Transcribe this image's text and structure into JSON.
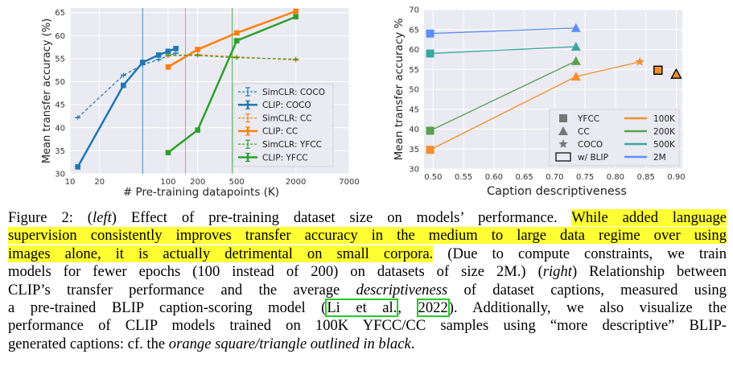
{
  "figure": {
    "left": {
      "ylabel": "Mean transfer accuracy (%)",
      "xlabel": "# Pre-training datapoints (K)",
      "xticks": [
        "10",
        "20",
        "100",
        "200",
        "500",
        "2000",
        "7000"
      ],
      "yticks": [
        "30",
        "35",
        "40",
        "45",
        "50",
        "55",
        "60",
        "65"
      ],
      "legend": [
        "SimCLR: COCO",
        "CLIP: COCO",
        "SimCLR: CC",
        "CLIP: CC",
        "SimCLR: YFCC",
        "CLIP: YFCC"
      ]
    },
    "right": {
      "ylabel": "Mean transfer accuracy %",
      "xlabel": "Caption descriptiveness",
      "xticks": [
        "0.50",
        "0.55",
        "0.60",
        "0.65",
        "0.70",
        "0.75",
        "0.80",
        "0.85",
        "0.90"
      ],
      "yticks": [
        "30",
        "35",
        "40",
        "45",
        "50",
        "55",
        "60",
        "65",
        "70"
      ],
      "legend_markers": [
        "YFCC",
        "CC",
        "COCO",
        "w/ BLIP"
      ],
      "legend_lines": [
        "100K",
        "200K",
        "500K",
        "2M"
      ]
    }
  },
  "chart_data": [
    {
      "type": "line",
      "xlabel": "# Pre-training datapoints (K)",
      "ylabel": "Mean transfer accuracy (%)",
      "xscale": "log",
      "xlim": [
        10,
        7000
      ],
      "ylim": [
        30,
        66
      ],
      "grid": true,
      "legend_position": "bottom-right",
      "vlines": [
        {
          "x": 55,
          "color": "#1f77b4"
        },
        {
          "x": 150,
          "color": "#ff7f0e"
        },
        {
          "x": 450,
          "color": "#2ca02c"
        }
      ],
      "series": [
        {
          "name": "SimCLR: COCO",
          "style": "dashed",
          "color": "#1f77b4",
          "x": [
            12,
            35,
            55,
            80,
            100,
            120
          ],
          "y": [
            42.2,
            51.4,
            53.7,
            54.8,
            55.6,
            56.2
          ]
        },
        {
          "name": "CLIP: COCO",
          "style": "solid",
          "color": "#1f77b4",
          "x": [
            12,
            35,
            55,
            80,
            100,
            120
          ],
          "y": [
            31.5,
            49.2,
            54.2,
            55.8,
            56.6,
            57.2
          ]
        },
        {
          "name": "SimCLR: CC",
          "style": "dashed",
          "color": "#ff7f0e",
          "x": [
            100,
            200,
            500,
            2000
          ],
          "y": [
            55.6,
            55.9,
            55.4,
            54.7
          ]
        },
        {
          "name": "CLIP: CC",
          "style": "solid",
          "color": "#ff7f0e",
          "x": [
            100,
            200,
            500,
            2000
          ],
          "y": [
            53.2,
            57.0,
            60.6,
            65.3
          ]
        },
        {
          "name": "SimCLR: YFCC",
          "style": "dashed",
          "color": "#2ca02c",
          "x": [
            100,
            200,
            500,
            2000
          ],
          "y": [
            55.8,
            55.7,
            55.2,
            54.9
          ]
        },
        {
          "name": "CLIP: YFCC",
          "style": "solid",
          "color": "#2ca02c",
          "x": [
            100,
            200,
            500,
            2000
          ],
          "y": [
            34.6,
            39.5,
            58.9,
            64.1
          ]
        }
      ]
    },
    {
      "type": "scatter",
      "xlabel": "Caption descriptiveness",
      "ylabel": "Mean transfer accuracy %",
      "xlim": [
        0.485,
        0.91
      ],
      "ylim": [
        30,
        70
      ],
      "grid": true,
      "legend_position": "bottom-right",
      "series": [
        {
          "name": "100K",
          "color": "#f28e2b",
          "points": [
            {
              "x": 0.495,
              "y": 34.8,
              "marker": "square"
            },
            {
              "x": 0.735,
              "y": 53.2,
              "marker": "triangle"
            },
            {
              "x": 0.84,
              "y": 56.9,
              "marker": "star"
            }
          ]
        },
        {
          "name": "200K",
          "color": "#59a14f",
          "points": [
            {
              "x": 0.495,
              "y": 39.6,
              "marker": "square"
            },
            {
              "x": 0.735,
              "y": 57.1,
              "marker": "triangle"
            }
          ]
        },
        {
          "name": "500K",
          "color": "#3aa6a0",
          "points": [
            {
              "x": 0.495,
              "y": 59.0,
              "marker": "square"
            },
            {
              "x": 0.735,
              "y": 60.7,
              "marker": "triangle"
            }
          ]
        },
        {
          "name": "2M",
          "color": "#5b8ff9",
          "points": [
            {
              "x": 0.495,
              "y": 64.0,
              "marker": "square"
            },
            {
              "x": 0.735,
              "y": 65.4,
              "marker": "triangle"
            }
          ]
        },
        {
          "name": "w/ BLIP",
          "color": "#f28e2b",
          "outline": "#000000",
          "points": [
            {
              "x": 0.87,
              "y": 54.8,
              "marker": "square"
            },
            {
              "x": 0.9,
              "y": 53.8,
              "marker": "triangle"
            }
          ]
        }
      ]
    }
  ],
  "caption": {
    "l1a": "Figure 2: (",
    "l1b": "left",
    "l1c": ") Effect of pre-training dataset size on models’ performance. ",
    "l1d": "While added language",
    "l2": "supervision consistently improves transfer accuracy in the medium to large data regime over using",
    "l3a": "images alone, it is actually detrimental on small corpora.",
    "l3b": " (Due to compute constraints, we train",
    "l4a": "models for fewer epochs (100 instead of 200) on datasets of size 2M.) (",
    "l4b": "right",
    "l4c": ") Relationship between",
    "l5a": "CLIP’s transfer performance and the average ",
    "l5b": "descriptiveness",
    "l5c": " of dataset captions, measured using",
    "l6a": "a pre-trained BLIP caption-scoring model (",
    "l6b": "Li et al.",
    "l6c": ", ",
    "l6d": "2022",
    "l6e": ").  Additionally, we also visualize the",
    "l7": "performance of CLIP models trained on 100K YFCC/CC samples using “more descriptive” BLIP-",
    "l8a": "generated captions: cf. the ",
    "l8b": "orange square/triangle outlined in black",
    "l8c": "."
  }
}
